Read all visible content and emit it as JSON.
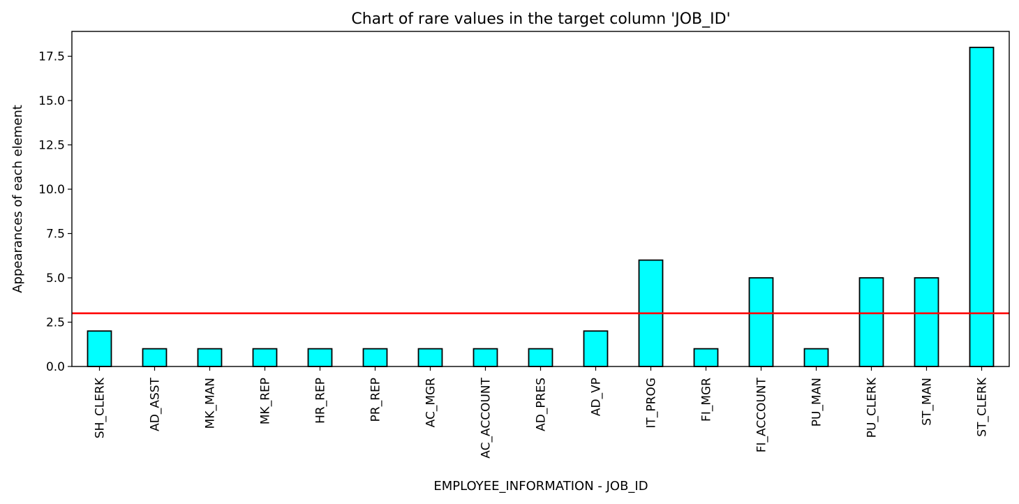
{
  "chart_data": {
    "type": "bar",
    "title": "Chart of rare values in the target column 'JOB_ID'",
    "xlabel": "EMPLOYEE_INFORMATION - JOB_ID",
    "ylabel": "Appearances of each element",
    "categories": [
      "SH_CLERK",
      "AD_ASST",
      "MK_MAN",
      "MK_REP",
      "HR_REP",
      "PR_REP",
      "AC_MGR",
      "AC_ACCOUNT",
      "AD_PRES",
      "AD_VP",
      "IT_PROG",
      "FI_MGR",
      "FI_ACCOUNT",
      "PU_MAN",
      "PU_CLERK",
      "ST_MAN",
      "ST_CLERK"
    ],
    "values": [
      2,
      1,
      1,
      1,
      1,
      1,
      1,
      1,
      1,
      2,
      6,
      1,
      5,
      1,
      5,
      5,
      18
    ],
    "yticks": [
      "0.0",
      "2.5",
      "5.0",
      "7.5",
      "10.0",
      "12.5",
      "15.0",
      "17.5"
    ],
    "ylim": [
      0,
      18.9
    ],
    "threshold": 3,
    "grid": false,
    "colors": {
      "bar": "#00ffff",
      "bar_edge": "#000000",
      "threshold": "#ff0000"
    }
  }
}
